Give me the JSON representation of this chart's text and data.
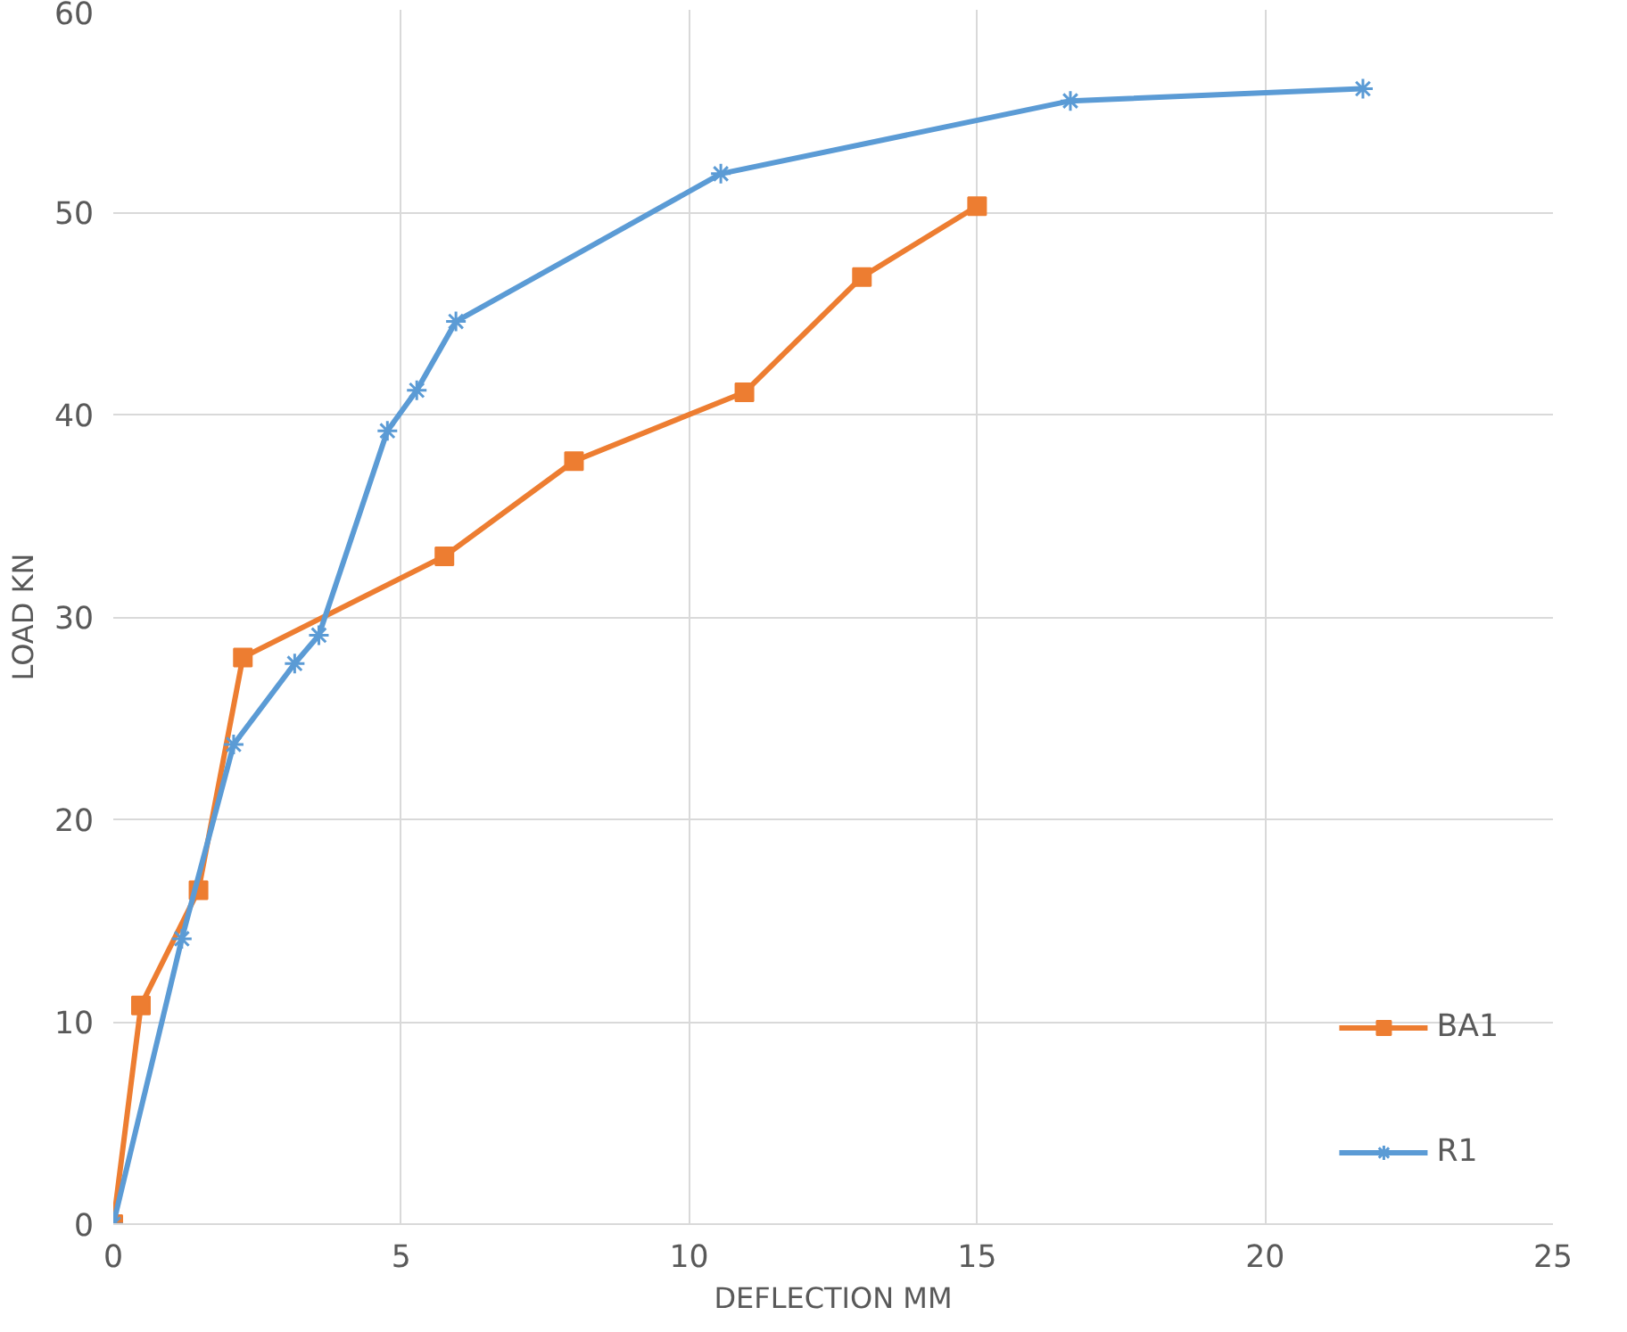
{
  "chart_data": {
    "type": "line",
    "xlabel": "DEFLECTION MM",
    "ylabel": "LOAD KN",
    "xlim": [
      0,
      25
    ],
    "ylim": [
      0,
      60
    ],
    "xticks": [
      0,
      5,
      10,
      15,
      20,
      25
    ],
    "yticks": [
      0,
      10,
      20,
      30,
      40,
      50,
      60
    ],
    "grid": true,
    "legend": "bottom right",
    "line_style": "solid",
    "series": [
      {
        "name": "BA1",
        "color": "#ed7d31",
        "marker": "square",
        "x": [
          0,
          0.48,
          1.48,
          2.25,
          5.75,
          8.0,
          10.96,
          13.0,
          15.0
        ],
        "values": [
          0,
          10.8,
          16.5,
          28.0,
          33.0,
          37.7,
          41.1,
          46.8,
          50.3
        ]
      },
      {
        "name": "R1",
        "color": "#5b9bd5",
        "marker": "cross",
        "x": [
          0,
          1.19,
          2.09,
          3.15,
          3.57,
          4.76,
          5.27,
          5.95,
          10.55,
          16.62,
          21.7
        ],
        "values": [
          0,
          14.1,
          23.7,
          27.7,
          29.1,
          39.2,
          41.2,
          44.6,
          51.9,
          55.5,
          56.1
        ]
      }
    ]
  }
}
